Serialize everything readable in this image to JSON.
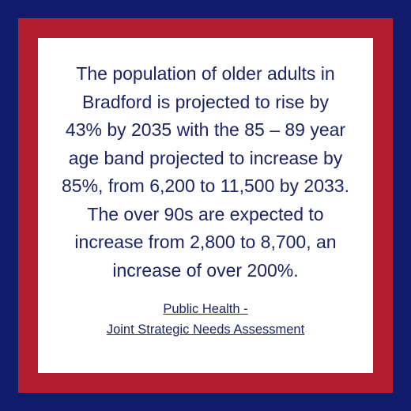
{
  "quote": {
    "lines": [
      "The population of older adults in",
      "Bradford is projected to rise by",
      "43% by 2035 with the 85 – 89 year",
      "age band projected to increase by",
      "85%, from 6,200 to 11,500 by 2033.",
      "The over 90s are expected to",
      "increase from 2,800 to 8,700, an",
      "increase of over 200%."
    ]
  },
  "source": {
    "lines": [
      "Public Health -",
      "Joint Strategic Needs Assessment"
    ]
  }
}
